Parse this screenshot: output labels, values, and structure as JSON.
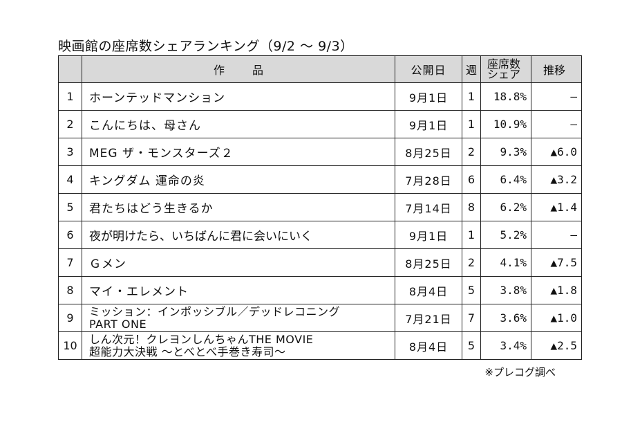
{
  "title": "映画館の座席数シェアランキング（9/2 ～ 9/3）",
  "headers": {
    "rank": "",
    "title": "作品",
    "release": "公開日",
    "week": "週",
    "share_line1": "座席数",
    "share_line2": "シェア",
    "trend": "推移"
  },
  "rows": [
    {
      "rank": "1",
      "title": "ホーンテッドマンション",
      "title2": "",
      "release": "9月1日",
      "week": "1",
      "share": "18.8%",
      "trend": "―"
    },
    {
      "rank": "2",
      "title": "こんにちは、母さん",
      "title2": "",
      "release": "9月1日",
      "week": "1",
      "share": "10.9%",
      "trend": "―"
    },
    {
      "rank": "3",
      "title": "MEG ザ・モンスターズ２",
      "title2": "",
      "release": "8月25日",
      "week": "2",
      "share": "9.3%",
      "trend": "▲6.0"
    },
    {
      "rank": "4",
      "title": "キングダム 運命の炎",
      "title2": "",
      "release": "7月28日",
      "week": "6",
      "share": "6.4%",
      "trend": "▲3.2"
    },
    {
      "rank": "5",
      "title": "君たちはどう生きるか",
      "title2": "",
      "release": "7月14日",
      "week": "8",
      "share": "6.2%",
      "trend": "▲1.4"
    },
    {
      "rank": "6",
      "title": "夜が明けたら、いちばんに君に会いにいく",
      "title2": "",
      "release": "9月1日",
      "week": "1",
      "share": "5.2%",
      "trend": "―"
    },
    {
      "rank": "7",
      "title": "Ｇメン",
      "title2": "",
      "release": "8月25日",
      "week": "2",
      "share": "4.1%",
      "trend": "▲7.5"
    },
    {
      "rank": "8",
      "title": "マイ・エレメント",
      "title2": "",
      "release": "8月4日",
      "week": "5",
      "share": "3.8%",
      "trend": "▲1.8"
    },
    {
      "rank": "9",
      "title": "ミッション：インポッシブル／デッドレコニング",
      "title2": "PART ONE",
      "release": "7月21日",
      "week": "7",
      "share": "3.6%",
      "trend": "▲1.0"
    },
    {
      "rank": "10",
      "title": "しん次元！クレヨンしんちゃんTHE MOVIE",
      "title2": "超能力大決戦 ～とべとべ手巻き寿司～",
      "release": "8月4日",
      "week": "5",
      "share": "3.4%",
      "trend": "▲2.5"
    }
  ],
  "note": "※プレコグ調べ"
}
